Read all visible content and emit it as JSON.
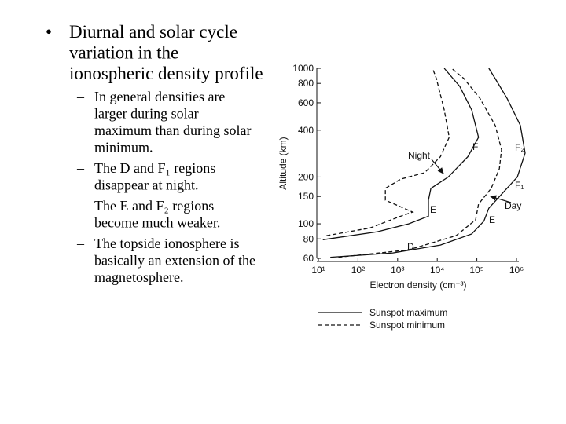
{
  "slide": {
    "bullet": [
      "Diurnal and solar cycle",
      "variation in the",
      "ionospheric density profile"
    ],
    "subbullets": [
      [
        "In general densities are",
        "larger during solar",
        "maximum than during solar",
        "minimum."
      ],
      [
        "The D and F₁ regions",
        "disappear at night."
      ],
      [
        "The E and F₂ regions",
        "become much weaker."
      ],
      [
        "The topside ionosphere is",
        "basically an extension of the",
        "magnetosphere."
      ]
    ]
  },
  "chart_data": {
    "type": "line",
    "xlabel": "Electron density (cm⁻³)",
    "ylabel": "Altitude (km)",
    "xlog": true,
    "ylog": true,
    "xlim": [
      10,
      1000000
    ],
    "ylim": [
      60,
      1000
    ],
    "xticks": [
      {
        "value": 10,
        "label": "10¹"
      },
      {
        "value": 100,
        "label": "10²"
      },
      {
        "value": 1000,
        "label": "10³"
      },
      {
        "value": 10000,
        "label": "10⁴"
      },
      {
        "value": 100000,
        "label": "10⁵"
      },
      {
        "value": 1000000,
        "label": "10⁶"
      }
    ],
    "yticks": [
      60,
      80,
      100,
      150,
      200,
      400,
      600,
      800,
      1000
    ],
    "series": [
      {
        "name": "Sunspot maximum",
        "color": "#111111",
        "dash": false,
        "x": [
          20,
          760,
          12000,
          74000,
          150000,
          200000,
          460000,
          1050000,
          1650000,
          1250000,
          580000,
          290000,
          200000
        ],
        "values": [
          61,
          65,
          73,
          86,
          104,
          126,
          159,
          200,
          285,
          430,
          640,
          860,
          1000
        ]
      },
      {
        "name": "Sunspot minimum",
        "color": "#111111",
        "dash": true,
        "x": [
          32,
          1900,
          30000,
          93000,
          110000,
          230000,
          370000,
          420000,
          290000,
          120000,
          47000,
          23000
        ],
        "values": [
          61,
          68,
          84,
          106,
          134,
          169,
          226,
          300,
          430,
          640,
          860,
          1000
        ]
      },
      {
        "name": "Sunspot maximum",
        "color": "#111111",
        "dash": false,
        "x": [
          13,
          310,
          1900,
          6000,
          6000,
          6900,
          19000,
          59000,
          110000,
          74000,
          37000,
          15000
        ],
        "values": [
          79,
          89,
          100,
          112,
          142,
          169,
          200,
          270,
          360,
          540,
          765,
          1000
        ]
      },
      {
        "name": "Sunspot minimum",
        "color": "#111111",
        "dash": true,
        "x": [
          16,
          200,
          1200,
          2400,
          490,
          490,
          1200,
          4800,
          12000,
          20000,
          15000,
          9500,
          7600
        ],
        "values": [
          84,
          94,
          112,
          119,
          142,
          169,
          194,
          213,
          270,
          360,
          540,
          860,
          1000
        ]
      }
    ],
    "annotations": [
      "Night",
      "F",
      "F₂",
      "F₁",
      "Day",
      "E",
      "E",
      "D"
    ]
  }
}
